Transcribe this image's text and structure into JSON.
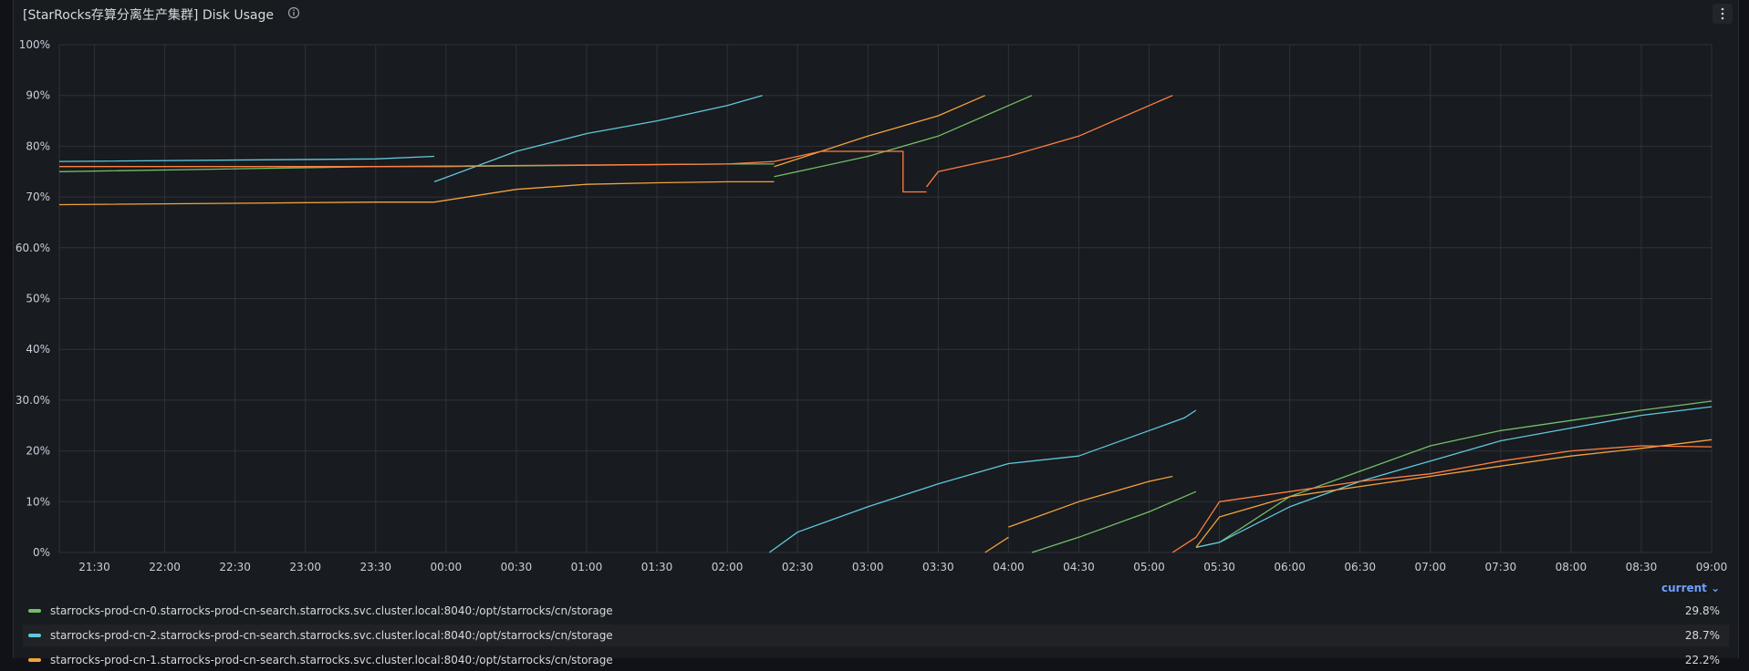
{
  "panel": {
    "title": "[StarRocks存算分离生产集群] Disk Usage",
    "info_icon": "info-circle-icon",
    "menu_icon": "vertical-ellipsis-icon"
  },
  "legend": {
    "sort_label": "current",
    "items": [
      {
        "name": "starrocks-prod-cn-0.starrocks-prod-cn-search.starrocks.svc.cluster.local:8040:/opt/starrocks/cn/storage",
        "value": "29.8%",
        "color": "#73bf69"
      },
      {
        "name": "starrocks-prod-cn-2.starrocks-prod-cn-search.starrocks.svc.cluster.local:8040:/opt/starrocks/cn/storage",
        "value": "28.7%",
        "color": "#5fc8dd"
      },
      {
        "name": "starrocks-prod-cn-1.starrocks-prod-cn-search.starrocks.svc.cluster.local:8040:/opt/starrocks/cn/storage",
        "value": "22.2%",
        "color": "#f2a33c"
      }
    ]
  },
  "chart_data": {
    "type": "line",
    "x_range": [
      "21:15",
      "09:00"
    ],
    "x_ticks": [
      "21:30",
      "22:00",
      "22:30",
      "23:00",
      "23:30",
      "00:00",
      "00:30",
      "01:00",
      "01:30",
      "02:00",
      "02:30",
      "03:00",
      "03:30",
      "04:00",
      "04:30",
      "05:00",
      "05:30",
      "06:00",
      "06:30",
      "07:00",
      "07:30",
      "08:00",
      "08:30",
      "09:00"
    ],
    "y_ticks": [
      "0%",
      "10%",
      "20%",
      "30.0%",
      "40%",
      "50%",
      "60.0%",
      "70%",
      "80%",
      "90%",
      "100%"
    ],
    "ylim": [
      0,
      100
    ],
    "grid": true,
    "series": [
      {
        "name": "starrocks-prod-cn-0.starrocks-prod-cn-search.starrocks.svc.cluster.local:8040:/opt/starrocks/cn/storage",
        "color": "#73bf69",
        "segments": [
          [
            [
              "21:15",
              75
            ],
            [
              "23:30",
              76
            ],
            [
              "00:00",
              76
            ],
            [
              "02:00",
              76.5
            ],
            [
              "02:20",
              76.5
            ]
          ],
          [
            [
              "02:20",
              74
            ],
            [
              "03:00",
              78
            ],
            [
              "03:30",
              82
            ],
            [
              "04:00",
              88
            ],
            [
              "04:10",
              90
            ]
          ],
          [
            [
              "04:10",
              0
            ],
            [
              "04:30",
              3
            ],
            [
              "05:00",
              8
            ],
            [
              "05:20",
              12
            ]
          ],
          [
            [
              "05:20",
              1
            ],
            [
              "05:30",
              2
            ],
            [
              "06:00",
              11
            ],
            [
              "06:30",
              16
            ],
            [
              "07:00",
              21
            ],
            [
              "07:30",
              24
            ],
            [
              "08:00",
              26
            ],
            [
              "08:30",
              28
            ],
            [
              "09:00",
              29.8
            ]
          ]
        ]
      },
      {
        "name": "starrocks-prod-cn-2.starrocks-prod-cn-search.starrocks.svc.cluster.local:8040:/opt/starrocks/cn/storage",
        "color": "#5fc8dd",
        "segments": [
          [
            [
              "21:15",
              77
            ],
            [
              "23:30",
              77.5
            ],
            [
              "23:55",
              78
            ]
          ],
          [
            [
              "23:55",
              73
            ],
            [
              "00:30",
              79
            ],
            [
              "01:00",
              82.5
            ],
            [
              "01:30",
              85
            ],
            [
              "02:00",
              88
            ],
            [
              "02:15",
              90
            ]
          ],
          [
            [
              "02:18",
              0
            ],
            [
              "02:30",
              4
            ],
            [
              "03:00",
              9
            ],
            [
              "03:30",
              13.5
            ],
            [
              "04:00",
              17.5
            ],
            [
              "04:30",
              19
            ],
            [
              "05:00",
              24
            ],
            [
              "05:15",
              26.5
            ],
            [
              "05:20",
              28
            ]
          ],
          [
            [
              "05:20",
              1
            ],
            [
              "05:30",
              2
            ],
            [
              "06:00",
              9
            ],
            [
              "06:30",
              14
            ],
            [
              "07:00",
              18
            ],
            [
              "07:30",
              22
            ],
            [
              "08:00",
              24.5
            ],
            [
              "08:30",
              27
            ],
            [
              "09:00",
              28.7
            ]
          ]
        ]
      },
      {
        "name": "starrocks-prod-cn-1.starrocks-prod-cn-search.starrocks.svc.cluster.local:8040:/opt/starrocks/cn/storage",
        "color": "#f2a33c",
        "segments": [
          [
            [
              "21:15",
              68.5
            ],
            [
              "23:30",
              69
            ],
            [
              "23:55",
              69
            ]
          ],
          [
            [
              "23:55",
              69
            ],
            [
              "00:30",
              71.5
            ],
            [
              "01:00",
              72.5
            ],
            [
              "01:30",
              72.8
            ],
            [
              "02:00",
              73
            ],
            [
              "02:20",
              73
            ]
          ],
          [
            [
              "02:20",
              76
            ],
            [
              "02:40",
              79
            ],
            [
              "03:00",
              82
            ],
            [
              "03:30",
              86
            ],
            [
              "03:45",
              89
            ],
            [
              "03:50",
              90
            ]
          ],
          [
            [
              "03:50",
              0
            ],
            [
              "04:00",
              3
            ]
          ],
          [
            [
              "04:00",
              5
            ],
            [
              "04:30",
              10
            ],
            [
              "05:00",
              14
            ],
            [
              "05:10",
              15
            ]
          ],
          [
            [
              "05:20",
              1
            ],
            [
              "05:30",
              7
            ],
            [
              "06:00",
              11
            ],
            [
              "06:30",
              13
            ],
            [
              "07:00",
              15
            ],
            [
              "07:30",
              17
            ],
            [
              "08:00",
              19
            ],
            [
              "08:30",
              20.5
            ],
            [
              "09:00",
              22.2
            ]
          ]
        ]
      },
      {
        "color": "#ff7f41",
        "segments": [
          [
            [
              "21:15",
              76
            ],
            [
              "23:30",
              76
            ],
            [
              "02:00",
              76.5
            ],
            [
              "02:20",
              77
            ],
            [
              "02:40",
              79
            ],
            [
              "03:15",
              79
            ],
            [
              "03:15",
              71
            ],
            [
              "03:25",
              71
            ]
          ],
          [
            [
              "03:25",
              72
            ],
            [
              "03:30",
              75
            ],
            [
              "04:00",
              78
            ],
            [
              "04:30",
              82
            ],
            [
              "05:00",
              88
            ],
            [
              "05:10",
              90
            ]
          ],
          [
            [
              "05:10",
              0
            ],
            [
              "05:20",
              3
            ],
            [
              "05:30",
              10
            ],
            [
              "06:00",
              12
            ],
            [
              "06:30",
              14
            ],
            [
              "07:00",
              15.5
            ],
            [
              "07:30",
              18
            ],
            [
              "08:00",
              20
            ],
            [
              "08:30",
              21
            ],
            [
              "09:00",
              20.8
            ]
          ]
        ]
      }
    ]
  }
}
